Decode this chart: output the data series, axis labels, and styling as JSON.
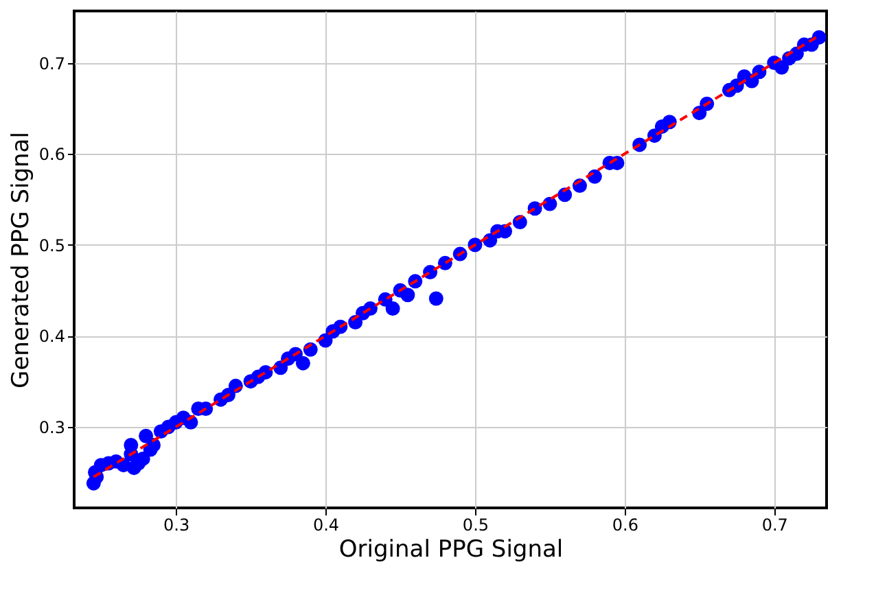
{
  "chart_data": {
    "type": "scatter",
    "xlabel": "Original PPG Signal",
    "ylabel": "Generated PPG Signal",
    "xlim": [
      0.232,
      0.735
    ],
    "ylim": [
      0.211,
      0.757
    ],
    "xticks": [
      0.3,
      0.4,
      0.5,
      0.6,
      0.7
    ],
    "yticks": [
      0.3,
      0.4,
      0.5,
      0.6,
      0.7
    ],
    "grid": true,
    "marker": "circle",
    "series": [
      {
        "color": "#0000ff",
        "x": [
          0.245,
          0.246,
          0.247,
          0.25,
          0.255,
          0.26,
          0.265,
          0.27,
          0.27,
          0.272,
          0.275,
          0.278,
          0.28,
          0.283,
          0.285,
          0.29,
          0.295,
          0.3,
          0.305,
          0.31,
          0.315,
          0.32,
          0.33,
          0.335,
          0.34,
          0.35,
          0.355,
          0.36,
          0.37,
          0.375,
          0.38,
          0.385,
          0.39,
          0.4,
          0.405,
          0.41,
          0.42,
          0.425,
          0.43,
          0.44,
          0.445,
          0.45,
          0.455,
          0.46,
          0.47,
          0.474,
          0.48,
          0.49,
          0.5,
          0.51,
          0.515,
          0.52,
          0.53,
          0.54,
          0.55,
          0.56,
          0.57,
          0.58,
          0.59,
          0.595,
          0.61,
          0.62,
          0.625,
          0.63,
          0.65,
          0.655,
          0.67,
          0.675,
          0.68,
          0.685,
          0.69,
          0.7,
          0.705,
          0.71,
          0.715,
          0.72,
          0.725,
          0.73
        ],
        "values": [
          0.238,
          0.25,
          0.245,
          0.258,
          0.26,
          0.262,
          0.258,
          0.27,
          0.28,
          0.255,
          0.26,
          0.265,
          0.29,
          0.275,
          0.28,
          0.295,
          0.3,
          0.305,
          0.31,
          0.305,
          0.32,
          0.32,
          0.33,
          0.335,
          0.345,
          0.35,
          0.355,
          0.36,
          0.365,
          0.375,
          0.38,
          0.37,
          0.385,
          0.395,
          0.405,
          0.41,
          0.415,
          0.425,
          0.43,
          0.44,
          0.43,
          0.45,
          0.445,
          0.46,
          0.47,
          0.441,
          0.48,
          0.49,
          0.5,
          0.505,
          0.515,
          0.515,
          0.525,
          0.54,
          0.545,
          0.555,
          0.565,
          0.575,
          0.59,
          0.59,
          0.61,
          0.62,
          0.63,
          0.635,
          0.645,
          0.655,
          0.67,
          0.675,
          0.685,
          0.68,
          0.69,
          0.7,
          0.695,
          0.705,
          0.71,
          0.72,
          0.72,
          0.728
        ]
      },
      {
        "type": "line",
        "color": "#ff0000",
        "line_style": "dashed",
        "marker": "none",
        "x": [
          0.245,
          0.73
        ],
        "values": [
          0.245,
          0.73
        ]
      }
    ]
  }
}
